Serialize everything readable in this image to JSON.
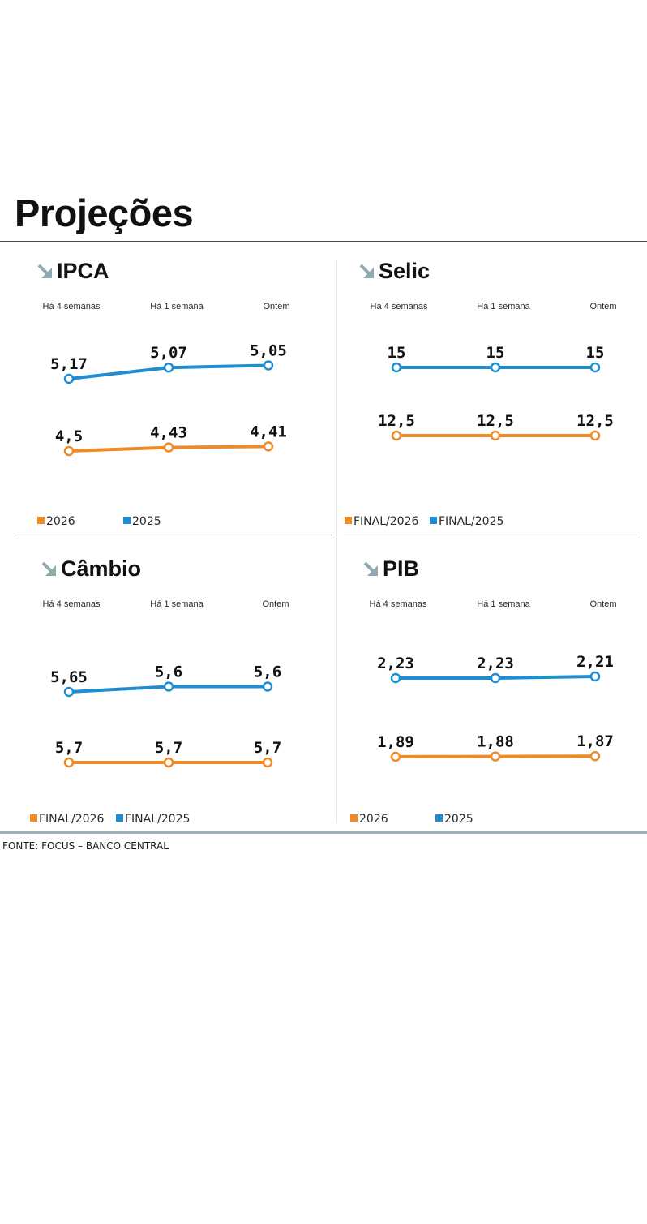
{
  "page": {
    "title": "Projeções",
    "source": "FONTE: FOCUS – BANCO CENTRAL"
  },
  "colors": {
    "orange": "#f08a24",
    "blue": "#1e8dd2",
    "arrow": "#8fa9b0"
  },
  "icons": {
    "trend": "arrow-down-right-icon"
  },
  "chart_data": [
    {
      "type": "line",
      "title": "IPCA",
      "categories": [
        "Há 4 semanas",
        "Há 1 semana",
        "Ontem"
      ],
      "series": [
        {
          "name": "2025",
          "color": "#1e8dd2",
          "values": [
            5.17,
            5.07,
            5.05
          ],
          "labels": [
            "5,17",
            "5,07",
            "5,05"
          ]
        },
        {
          "name": "2026",
          "color": "#f08a24",
          "values": [
            4.5,
            4.43,
            4.41
          ],
          "labels": [
            "4,5",
            "4,43",
            "4,41"
          ]
        }
      ],
      "legend": [
        "2026",
        "2025"
      ]
    },
    {
      "type": "line",
      "title": "Selic",
      "categories": [
        "Há 4 semanas",
        "Há 1 semana",
        "Ontem"
      ],
      "series": [
        {
          "name": "FINAL/2025",
          "color": "#1e8dd2",
          "values": [
            15,
            15,
            15
          ],
          "labels": [
            "15",
            "15",
            "15"
          ]
        },
        {
          "name": "FINAL/2026",
          "color": "#f08a24",
          "values": [
            12.5,
            12.5,
            12.5
          ],
          "labels": [
            "12,5",
            "12,5",
            "12,5"
          ]
        }
      ],
      "legend": [
        "FINAL/2026",
        "FINAL/2025"
      ]
    },
    {
      "type": "line",
      "title": "Câmbio",
      "categories": [
        "Há 4 semanas",
        "Há 1 semana",
        "Ontem"
      ],
      "series": [
        {
          "name": "FINAL/2025",
          "color": "#1e8dd2",
          "values": [
            5.65,
            5.6,
            5.6
          ],
          "labels": [
            "5,65",
            "5,6",
            "5,6"
          ]
        },
        {
          "name": "FINAL/2026",
          "color": "#f08a24",
          "values": [
            5.7,
            5.7,
            5.7
          ],
          "labels": [
            "5,7",
            "5,7",
            "5,7"
          ]
        }
      ],
      "legend": [
        "FINAL/2026",
        "FINAL/2025"
      ]
    },
    {
      "type": "line",
      "title": "PIB",
      "categories": [
        "Há 4 semanas",
        "Há 1 semana",
        "Ontem"
      ],
      "series": [
        {
          "name": "2025",
          "color": "#1e8dd2",
          "values": [
            2.23,
            2.23,
            2.21
          ],
          "labels": [
            "2,23",
            "2,23",
            "2,21"
          ]
        },
        {
          "name": "2026",
          "color": "#f08a24",
          "values": [
            1.89,
            1.88,
            1.87
          ],
          "labels": [
            "1,89",
            "1,88",
            "1,87"
          ]
        }
      ],
      "legend": [
        "2026",
        "2025"
      ]
    }
  ]
}
